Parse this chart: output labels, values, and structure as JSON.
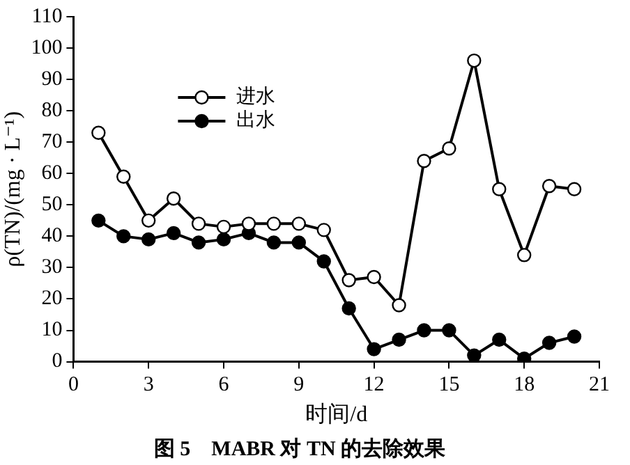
{
  "chart_data": {
    "type": "line",
    "title": "图 5　MABR 对 TN 的去除效果",
    "xlabel": "时间/d",
    "ylabel": "ρ(TN)/(mg · L⁻¹)",
    "x": [
      1,
      2,
      3,
      4,
      5,
      6,
      7,
      8,
      9,
      10,
      11,
      12,
      13,
      14,
      15,
      16,
      17,
      18,
      19,
      20
    ],
    "series": [
      {
        "name": "进水",
        "color": "#000000",
        "marker": "circle_open",
        "values": [
          73,
          59,
          45,
          52,
          44,
          43,
          44,
          44,
          44,
          42,
          26,
          27,
          18,
          64,
          68,
          96,
          55,
          34,
          56,
          55
        ]
      },
      {
        "name": "出水",
        "color": "#000000",
        "marker": "circle",
        "values": [
          45,
          40,
          39,
          41,
          38,
          39,
          41,
          38,
          38,
          32,
          17,
          4,
          7,
          10,
          10,
          2,
          7,
          1,
          6,
          8
        ]
      }
    ],
    "xlim": [
      0,
      21
    ],
    "xticks": [
      0,
      3,
      6,
      9,
      12,
      15,
      18,
      21
    ],
    "ylim": [
      0,
      110
    ],
    "yticks": [
      0,
      10,
      20,
      30,
      40,
      50,
      60,
      70,
      80,
      90,
      100,
      110
    ],
    "grid": false,
    "legend": "top left",
    "line_style": "solid"
  }
}
